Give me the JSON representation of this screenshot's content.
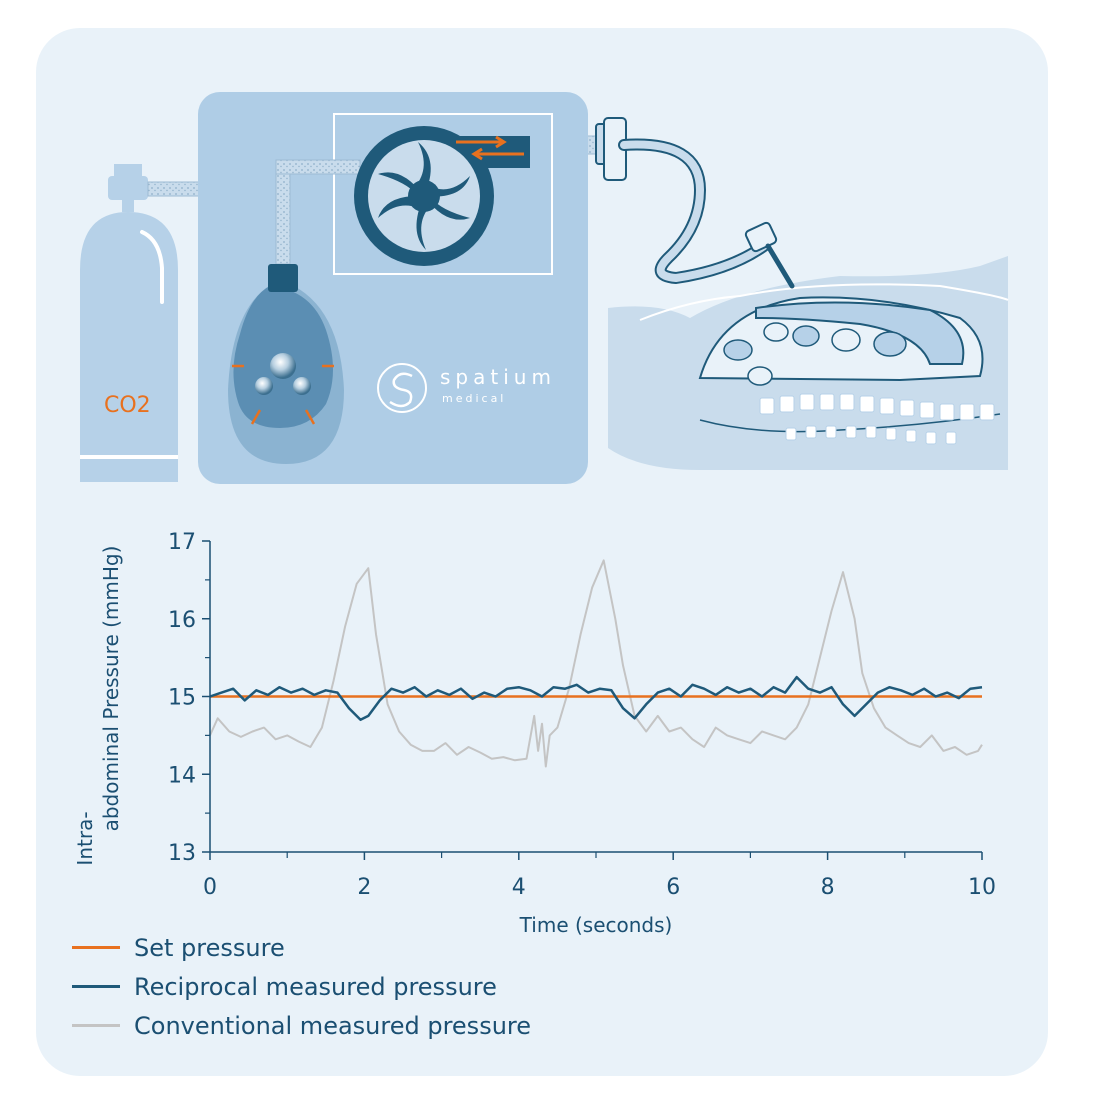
{
  "illustration": {
    "cylinder_label": "CO2",
    "brand_name": "spatium",
    "brand_sub": "medical"
  },
  "colors": {
    "set": "#e8711f",
    "reciprocal": "#1f5a7a",
    "conventional": "#c4c4c4",
    "axis": "#1b4f72"
  },
  "chart_data": {
    "type": "line",
    "xlabel": "Time (seconds)",
    "ylabel_line1": "Intra-",
    "ylabel_line2": "abdominal Pressure (mmHg)",
    "xlim": [
      0,
      10
    ],
    "ylim": [
      13,
      17
    ],
    "xticks": [
      0,
      2,
      4,
      6,
      8,
      10
    ],
    "yticks": [
      13,
      14,
      15,
      16,
      17
    ],
    "grid": false,
    "legend_position": "bottom-left",
    "series": [
      {
        "name": "Set pressure",
        "x": [
          0,
          10
        ],
        "y": [
          15.0,
          15.0
        ]
      },
      {
        "name": "Reciprocal measured pressure",
        "x": [
          0,
          0.15,
          0.3,
          0.45,
          0.6,
          0.75,
          0.9,
          1.05,
          1.2,
          1.35,
          1.5,
          1.65,
          1.8,
          1.95,
          2.05,
          2.2,
          2.35,
          2.5,
          2.65,
          2.8,
          2.95,
          3.1,
          3.25,
          3.4,
          3.55,
          3.7,
          3.85,
          4.0,
          4.15,
          4.3,
          4.45,
          4.6,
          4.75,
          4.9,
          5.05,
          5.2,
          5.35,
          5.5,
          5.65,
          5.8,
          5.95,
          6.1,
          6.25,
          6.4,
          6.55,
          6.7,
          6.85,
          7.0,
          7.15,
          7.3,
          7.45,
          7.6,
          7.75,
          7.9,
          8.05,
          8.2,
          8.35,
          8.5,
          8.65,
          8.8,
          8.95,
          9.1,
          9.25,
          9.4,
          9.55,
          9.7,
          9.85,
          10.0
        ],
        "y": [
          15.0,
          15.05,
          15.1,
          14.95,
          15.08,
          15.02,
          15.12,
          15.05,
          15.1,
          15.02,
          15.08,
          15.05,
          14.85,
          14.7,
          14.75,
          14.95,
          15.1,
          15.05,
          15.12,
          15.0,
          15.08,
          15.02,
          15.1,
          14.97,
          15.05,
          15.0,
          15.1,
          15.12,
          15.08,
          15.0,
          15.12,
          15.1,
          15.15,
          15.05,
          15.1,
          15.08,
          14.85,
          14.72,
          14.9,
          15.05,
          15.1,
          15.0,
          15.15,
          15.1,
          15.02,
          15.12,
          15.05,
          15.1,
          15.0,
          15.12,
          15.05,
          15.25,
          15.1,
          15.05,
          15.12,
          14.9,
          14.75,
          14.9,
          15.05,
          15.12,
          15.08,
          15.02,
          15.1,
          15.0,
          15.05,
          14.98,
          15.1,
          15.12
        ]
      },
      {
        "name": "Conventional measured pressure",
        "x": [
          0,
          0.1,
          0.25,
          0.4,
          0.55,
          0.7,
          0.85,
          1.0,
          1.15,
          1.3,
          1.45,
          1.6,
          1.75,
          1.9,
          2.05,
          2.15,
          2.3,
          2.45,
          2.6,
          2.75,
          2.9,
          3.05,
          3.2,
          3.35,
          3.5,
          3.65,
          3.8,
          3.95,
          4.1,
          4.2,
          4.25,
          4.3,
          4.35,
          4.4,
          4.5,
          4.65,
          4.8,
          4.95,
          5.1,
          5.25,
          5.35,
          5.5,
          5.65,
          5.8,
          5.95,
          6.1,
          6.25,
          6.4,
          6.55,
          6.7,
          6.85,
          7.0,
          7.15,
          7.3,
          7.45,
          7.6,
          7.75,
          7.9,
          8.05,
          8.2,
          8.35,
          8.45,
          8.6,
          8.75,
          8.9,
          9.05,
          9.2,
          9.35,
          9.5,
          9.65,
          9.8,
          9.95,
          10.0
        ],
        "y": [
          14.5,
          14.72,
          14.55,
          14.48,
          14.55,
          14.6,
          14.45,
          14.5,
          14.42,
          14.35,
          14.6,
          15.2,
          15.9,
          16.45,
          16.65,
          15.8,
          14.9,
          14.55,
          14.38,
          14.3,
          14.3,
          14.4,
          14.25,
          14.35,
          14.28,
          14.2,
          14.22,
          14.18,
          14.2,
          14.75,
          14.3,
          14.65,
          14.1,
          14.5,
          14.6,
          15.1,
          15.8,
          16.4,
          16.75,
          16.0,
          15.4,
          14.75,
          14.55,
          14.75,
          14.55,
          14.6,
          14.45,
          14.35,
          14.6,
          14.5,
          14.45,
          14.4,
          14.55,
          14.5,
          14.45,
          14.6,
          14.9,
          15.5,
          16.1,
          16.6,
          16.0,
          15.3,
          14.85,
          14.6,
          14.5,
          14.4,
          14.35,
          14.5,
          14.3,
          14.35,
          14.25,
          14.3,
          14.38
        ]
      }
    ]
  }
}
